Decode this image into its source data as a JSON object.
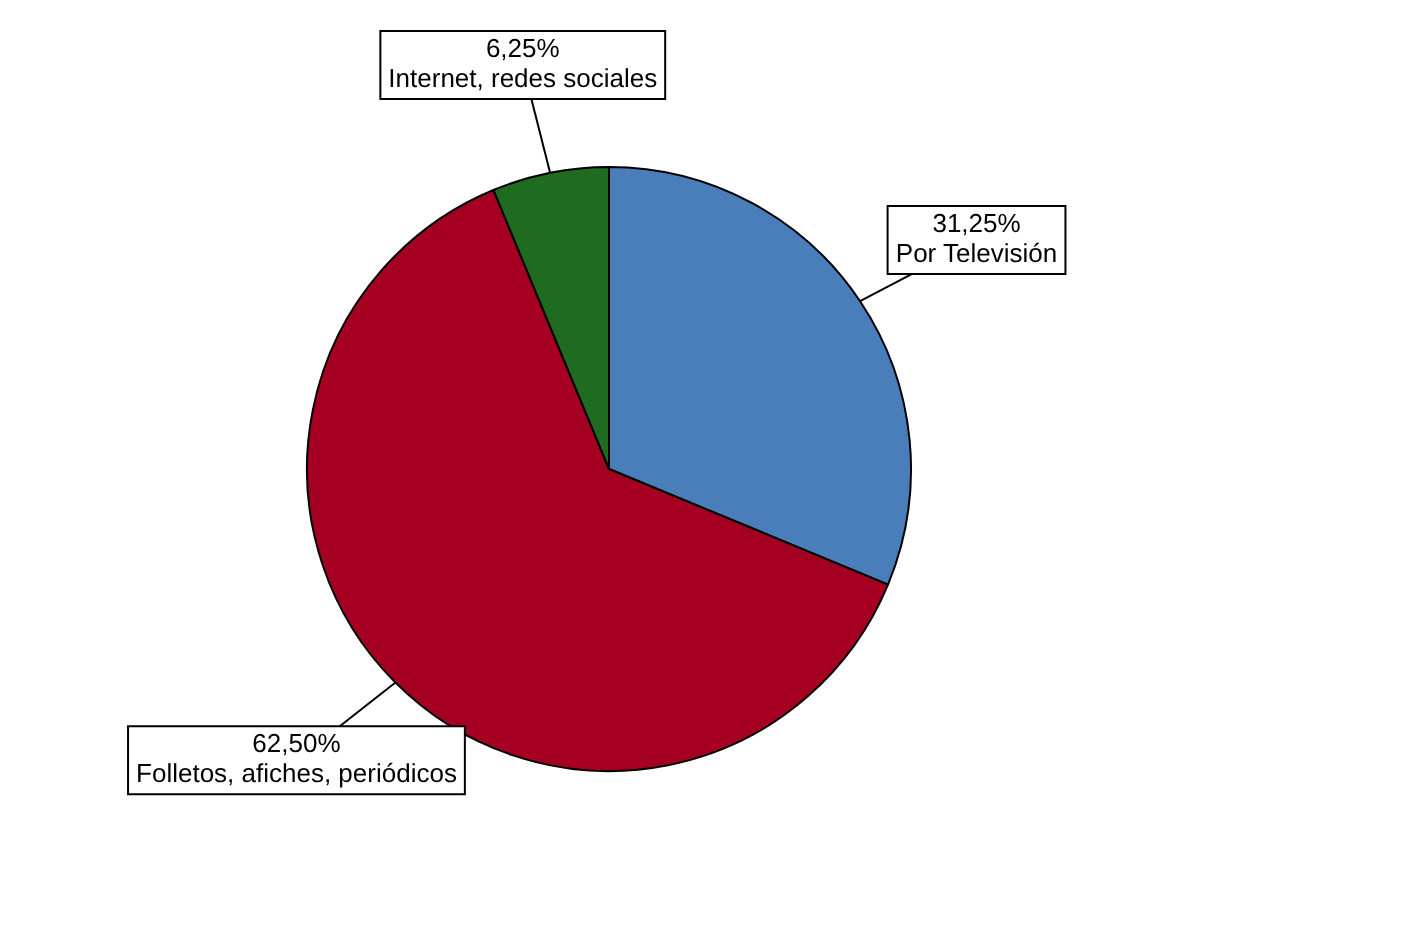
{
  "chart_data": {
    "type": "pie",
    "categories": [
      "Por Televisión",
      "Folletos, afiches, periódicos",
      "Internet, redes sociales"
    ],
    "values": [
      31.25,
      62.5,
      6.25
    ],
    "colors": [
      "#4a7ebb",
      "#a50021",
      "#1f6b1f"
    ],
    "value_labels": [
      "31,25%",
      "62,50%",
      "6,25%"
    ],
    "legend": false
  }
}
